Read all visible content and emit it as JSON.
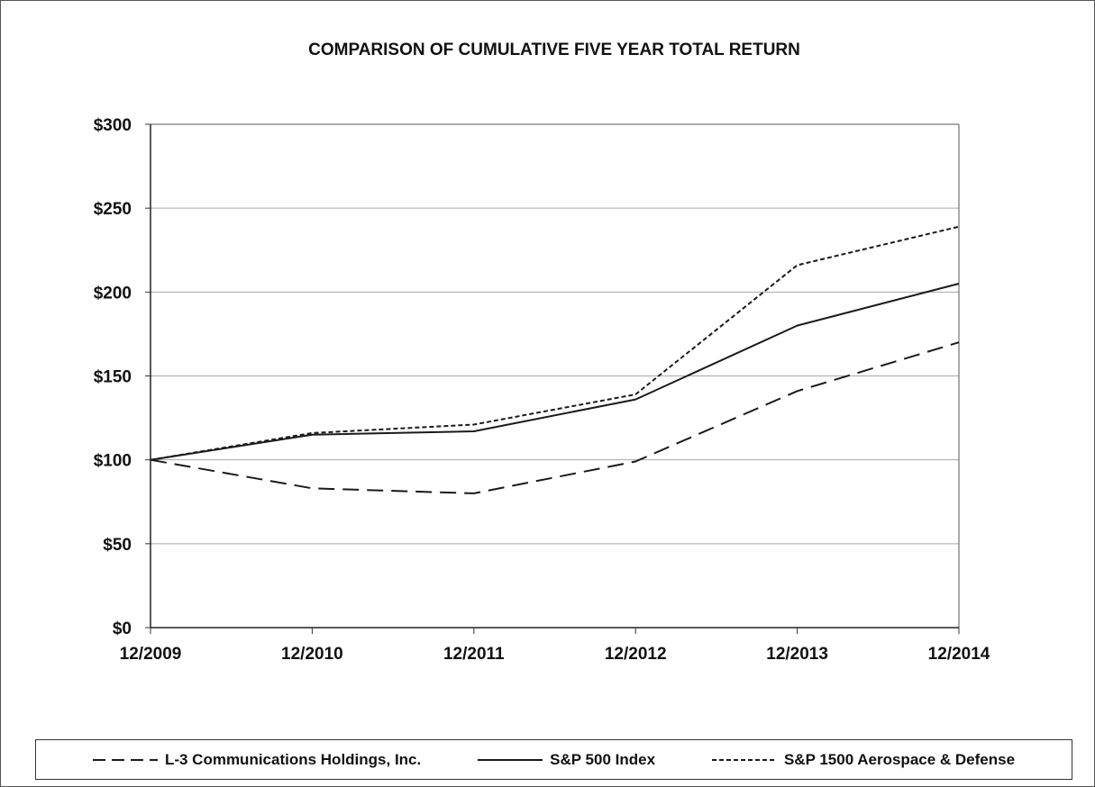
{
  "chart_data": {
    "type": "line",
    "title": "COMPARISON OF CUMULATIVE FIVE YEAR TOTAL RETURN",
    "xlabel": "",
    "ylabel": "",
    "categories": [
      "12/2009",
      "12/2010",
      "12/2011",
      "12/2012",
      "12/2013",
      "12/2014"
    ],
    "ylim": [
      0,
      300
    ],
    "yticks": [
      "$0",
      "$50",
      "$100",
      "$150",
      "$200",
      "$250",
      "$300"
    ],
    "grid": true,
    "legend": "bottom",
    "series": [
      {
        "name": "L-3 Communications Holdings, Inc.",
        "style": "long-dash",
        "color": "#1a1a1a",
        "values": [
          100,
          83,
          80,
          99,
          141,
          170
        ]
      },
      {
        "name": "S&P 500 Index",
        "style": "solid",
        "color": "#1a1a1a",
        "values": [
          100,
          115,
          117,
          136,
          180,
          205
        ]
      },
      {
        "name": "S&P 1500 Aerospace & Defense",
        "style": "short-dash",
        "color": "#1a1a1a",
        "values": [
          100,
          116,
          121,
          139,
          216,
          239
        ]
      }
    ]
  }
}
